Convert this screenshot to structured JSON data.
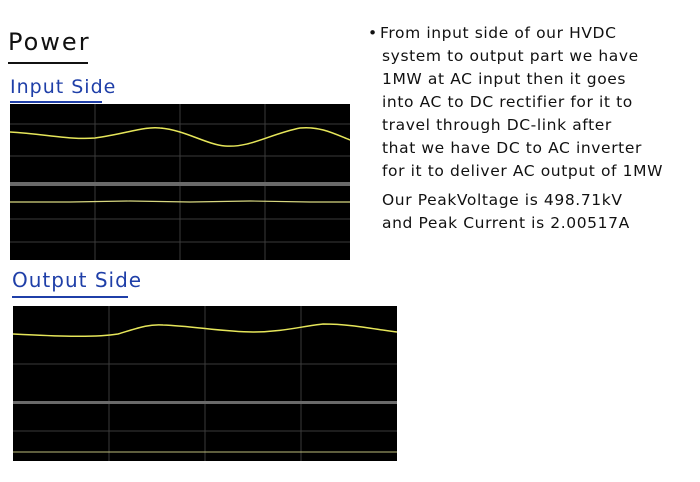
{
  "title": "Power",
  "input_heading": "Input Side",
  "output_heading": "Output Side",
  "notes": {
    "bullet": "•",
    "lines": [
      "From input side of our HVDC",
      "system to output part we have",
      "1MW at AC input then it goes",
      "into AC to DC rectifier for it to",
      "travel through DC-link after",
      "that we have DC to AC inverter",
      "for it to deliver AC output of 1MW"
    ],
    "voltage_line": "Our PeakVoltage is 498.71kV",
    "current_line": "and Peak Current is 2.00517A"
  },
  "colors": {
    "trace": "#e6e65a",
    "grid": "#3a3a3a",
    "heading_ink": "#1f3fa8"
  }
}
